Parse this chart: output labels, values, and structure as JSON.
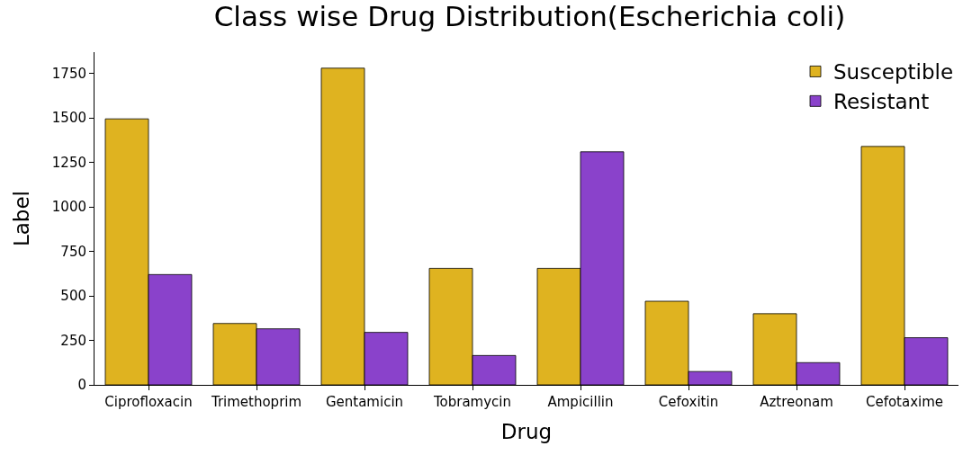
{
  "chart_data": {
    "type": "bar",
    "title": "Class wise Drug Distribution(Escherichia coli)",
    "xlabel": "Drug",
    "ylabel": "Label",
    "categories": [
      "Ciprofloxacin",
      "Trimethoprim",
      "Gentamicin",
      "Tobramycin",
      "Ampicillin",
      "Cefoxitin",
      "Aztreonam",
      "Cefotaxime"
    ],
    "series": [
      {
        "name": "Susceptible",
        "color": "#dfb320",
        "values": [
          1495,
          345,
          1780,
          655,
          655,
          470,
          400,
          1340
        ]
      },
      {
        "name": "Resistant",
        "color": "#8a42cb",
        "values": [
          620,
          315,
          295,
          165,
          1310,
          75,
          125,
          265
        ]
      }
    ],
    "ylim": [
      0,
      1870
    ],
    "yticks": [
      0,
      250,
      500,
      750,
      1000,
      1250,
      1500,
      1750
    ],
    "grid": false,
    "legend": "top right"
  }
}
